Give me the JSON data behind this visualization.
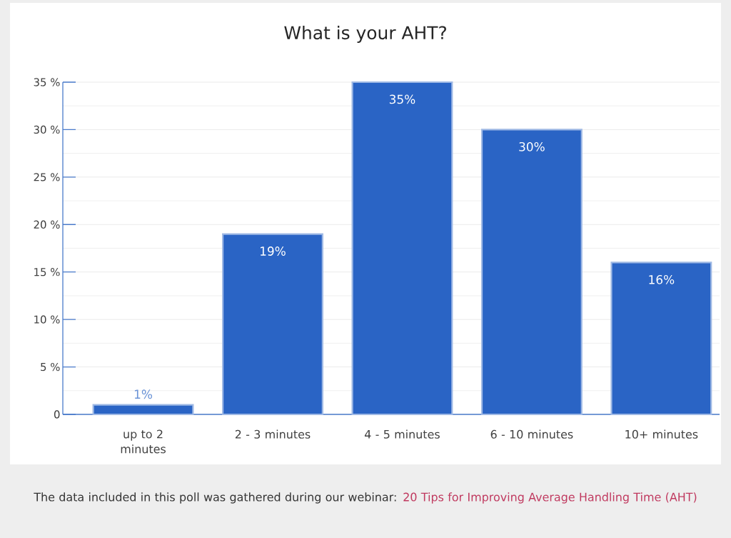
{
  "chart_data": {
    "type": "bar",
    "title": "What is your AHT?",
    "categories": [
      "up to 2 minutes",
      "2 - 3 minutes",
      "4 - 5 minutes",
      "6 - 10 minutes",
      "10+ minutes"
    ],
    "values": [
      1,
      19,
      35,
      30,
      16
    ],
    "value_labels": [
      "1%",
      "19%",
      "35%",
      "30%",
      "16%"
    ],
    "color": "#2a64c5",
    "ylim": [
      0,
      35
    ],
    "yticks": [
      0,
      {
        "value": 5,
        "label": "5 %"
      },
      {
        "value": 10,
        "label": "10 %"
      },
      {
        "value": 15,
        "label": "15 %"
      },
      {
        "value": 20,
        "label": "20 %"
      },
      {
        "value": 25,
        "label": "25 %"
      },
      {
        "value": 30,
        "label": "30 %"
      },
      {
        "value": 35,
        "label": "35 %"
      }
    ],
    "grid": "y",
    "annotations": [
      "The data included in this poll was gathered during our webinar:",
      "20 Tips for Improving Average Handling Time (AHT)"
    ]
  }
}
